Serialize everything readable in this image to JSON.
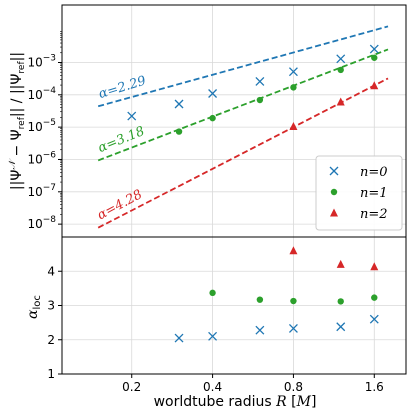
{
  "chart_data": [
    {
      "type": "scatter",
      "panel": "top",
      "xlabel": "worldtube radius R [M]",
      "ylabel": "||Ψ^N − Ψ_ref|| / ||Ψ_ref||",
      "xscale": "log",
      "yscale": "log",
      "xlim": [
        0.11,
        2.1
      ],
      "ylim": [
        4e-09,
        0.06
      ],
      "grid": true,
      "legend_position": "lower right",
      "y_ticks": [
        {
          "value": 1e-08,
          "base": "10",
          "exp": "−8"
        },
        {
          "value": 1e-07,
          "base": "10",
          "exp": "−7"
        },
        {
          "value": 1e-06,
          "base": "10",
          "exp": "−6"
        },
        {
          "value": 1e-05,
          "base": "10",
          "exp": "−5"
        },
        {
          "value": 0.0001,
          "base": "10",
          "exp": "−4"
        },
        {
          "value": 0.001,
          "base": "10",
          "exp": "−3"
        }
      ],
      "series": [
        {
          "name": "n=0",
          "marker": "x",
          "color": "#1f77b4",
          "x": [
            0.2,
            0.3,
            0.4,
            0.6,
            0.8,
            1.2,
            1.6
          ],
          "y": [
            2.2e-05,
            5.2e-05,
            0.00011,
            0.00026,
            0.00052,
            0.0013,
            0.0026
          ]
        },
        {
          "name": "n=1",
          "marker": "circle",
          "color": "#2ca02c",
          "x": [
            0.3,
            0.4,
            0.6,
            0.8,
            1.2,
            1.6
          ],
          "y": [
            7.3e-06,
            1.9e-05,
            6.9e-05,
            0.00017,
            0.00059,
            0.0014
          ]
        },
        {
          "name": "n=2",
          "marker": "triangle",
          "color": "#d62728",
          "x": [
            0.8,
            1.2,
            1.6
          ],
          "y": [
            1.05e-05,
            6e-05,
            0.00019
          ]
        }
      ],
      "fits": [
        {
          "label": "α=2.29",
          "slope": 2.29,
          "color": "#1f77b4",
          "x_start": 0.15,
          "x_end": 1.8,
          "y_at_x1": 0.0034,
          "label_angle": -17
        },
        {
          "label": "α=3.18",
          "slope": 3.18,
          "color": "#2ca02c",
          "x_start": 0.15,
          "x_end": 1.8,
          "y_at_x1": 0.00039,
          "label_angle": -22
        },
        {
          "label": "α=4.28",
          "slope": 4.28,
          "color": "#d62728",
          "x_start": 0.15,
          "x_end": 1.8,
          "y_at_x1": 2.6e-05,
          "label_angle": -28
        }
      ]
    },
    {
      "type": "scatter",
      "panel": "bottom",
      "xlabel": "worldtube radius R [M]",
      "ylabel": "α_loc",
      "xscale": "log",
      "xlim": [
        0.11,
        2.1
      ],
      "ylim": [
        1,
        5
      ],
      "grid": true,
      "x_ticks": [
        0.2,
        0.4,
        0.8,
        1.6
      ],
      "y_ticks": [
        1,
        2,
        3,
        4
      ],
      "series": [
        {
          "name": "n=0",
          "marker": "x",
          "color": "#1f77b4",
          "x": [
            0.3,
            0.4,
            0.6,
            0.8,
            1.2,
            1.6
          ],
          "y": [
            2.05,
            2.1,
            2.28,
            2.33,
            2.38,
            2.6
          ]
        },
        {
          "name": "n=1",
          "marker": "circle",
          "color": "#2ca02c",
          "x": [
            0.4,
            0.6,
            0.8,
            1.2,
            1.6
          ],
          "y": [
            3.37,
            3.17,
            3.13,
            3.12,
            3.23
          ]
        },
        {
          "name": "n=2",
          "marker": "triangle",
          "color": "#d62728",
          "x": [
            0.8,
            1.2,
            1.6
          ],
          "y": [
            4.6,
            4.2,
            4.13
          ]
        }
      ]
    }
  ],
  "labels": {
    "xlabel_text": "worldtube radius ",
    "xlabel_var": "R",
    "xlabel_unit_open": " [",
    "xlabel_unit": "M",
    "xlabel_unit_close": "]",
    "ylabel_bottom_main": "α",
    "ylabel_bottom_sub": "loc"
  }
}
